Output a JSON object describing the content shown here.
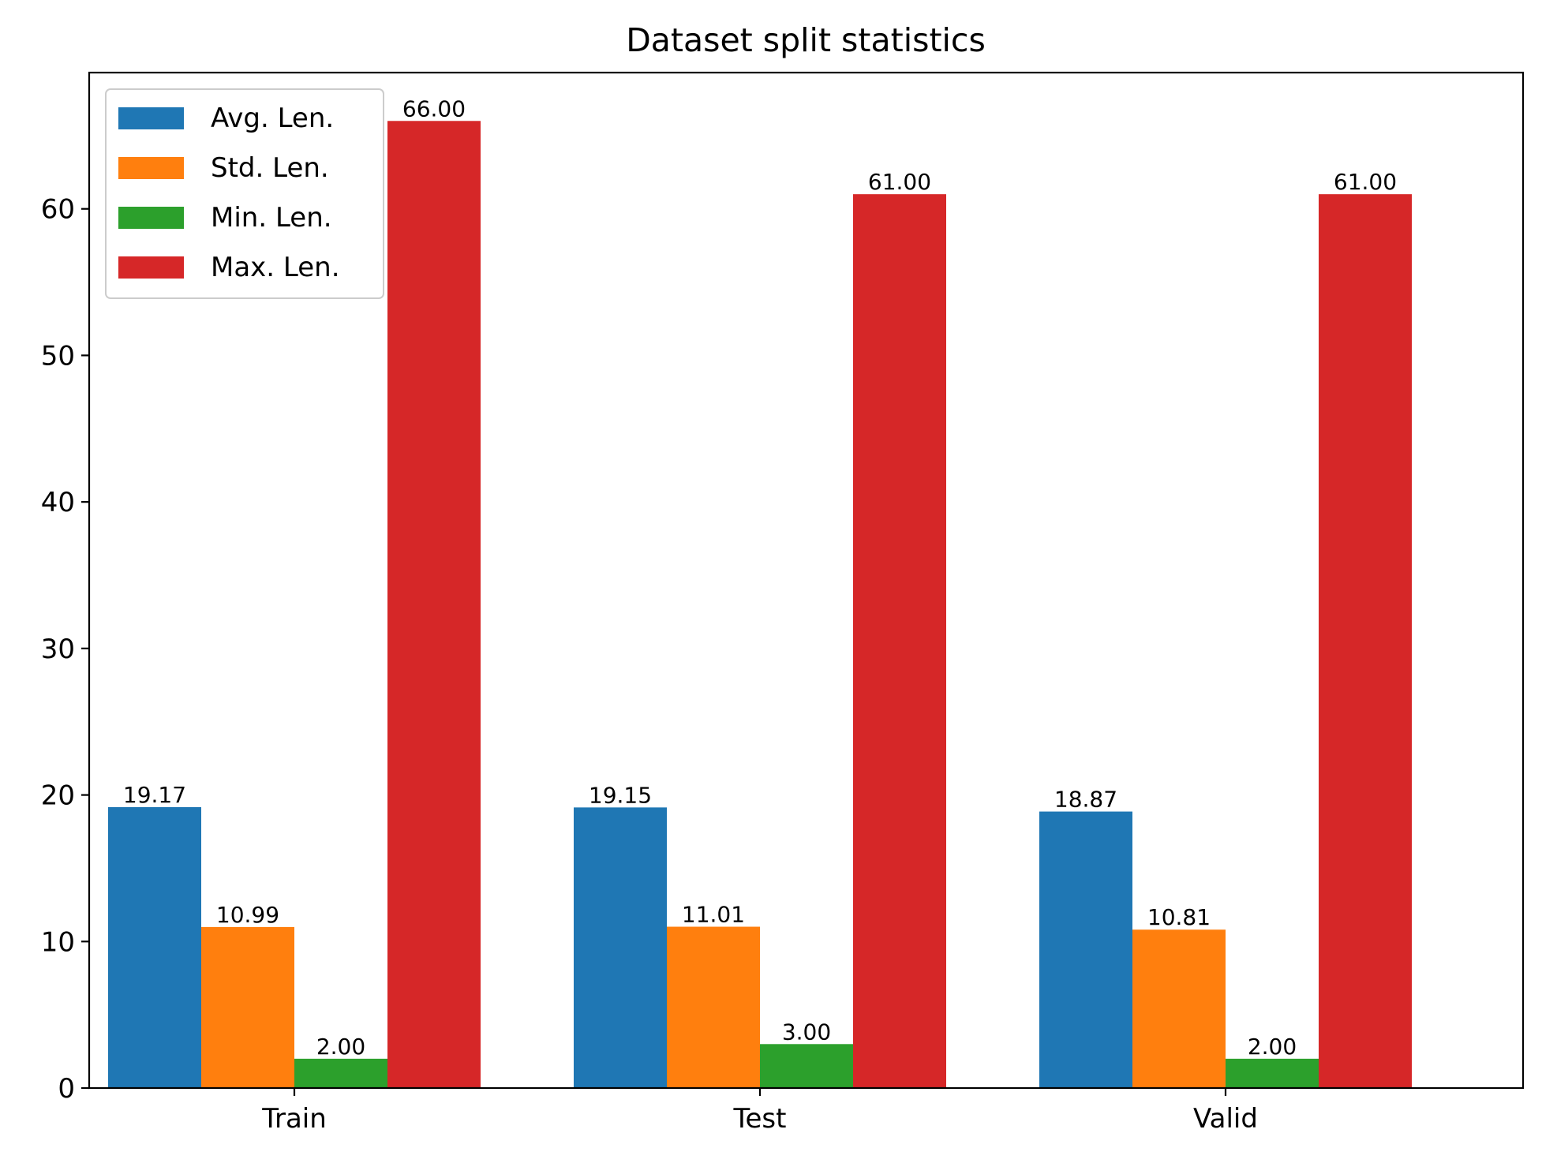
{
  "chart_data": {
    "type": "bar",
    "title": "Dataset split statistics",
    "xlabel": "",
    "ylabel": "",
    "categories": [
      "Train",
      "Test",
      "Valid"
    ],
    "series": [
      {
        "name": "Avg. Len.",
        "color": "#1f77b4",
        "values": [
          19.17,
          19.15,
          18.87
        ],
        "labels": [
          "19.17",
          "19.15",
          "18.87"
        ]
      },
      {
        "name": "Std. Len.",
        "color": "#ff7f0e",
        "values": [
          10.99,
          11.01,
          10.81
        ],
        "labels": [
          "10.99",
          "11.01",
          "10.81"
        ]
      },
      {
        "name": "Min. Len.",
        "color": "#2ca02c",
        "values": [
          2.0,
          3.0,
          2.0
        ],
        "labels": [
          "2.00",
          "3.00",
          "2.00"
        ]
      },
      {
        "name": "Max. Len.",
        "color": "#d62728",
        "values": [
          66.0,
          61.0,
          61.0
        ],
        "labels": [
          "66.00",
          "61.00",
          "61.00"
        ]
      }
    ],
    "ylim": [
      0,
      69.3
    ],
    "yticks": [
      0,
      10,
      20,
      30,
      40,
      50,
      60
    ],
    "ytick_labels": [
      "0",
      "10",
      "20",
      "30",
      "40",
      "50",
      "60"
    ],
    "legend_position": "top-left",
    "grid": false
  }
}
